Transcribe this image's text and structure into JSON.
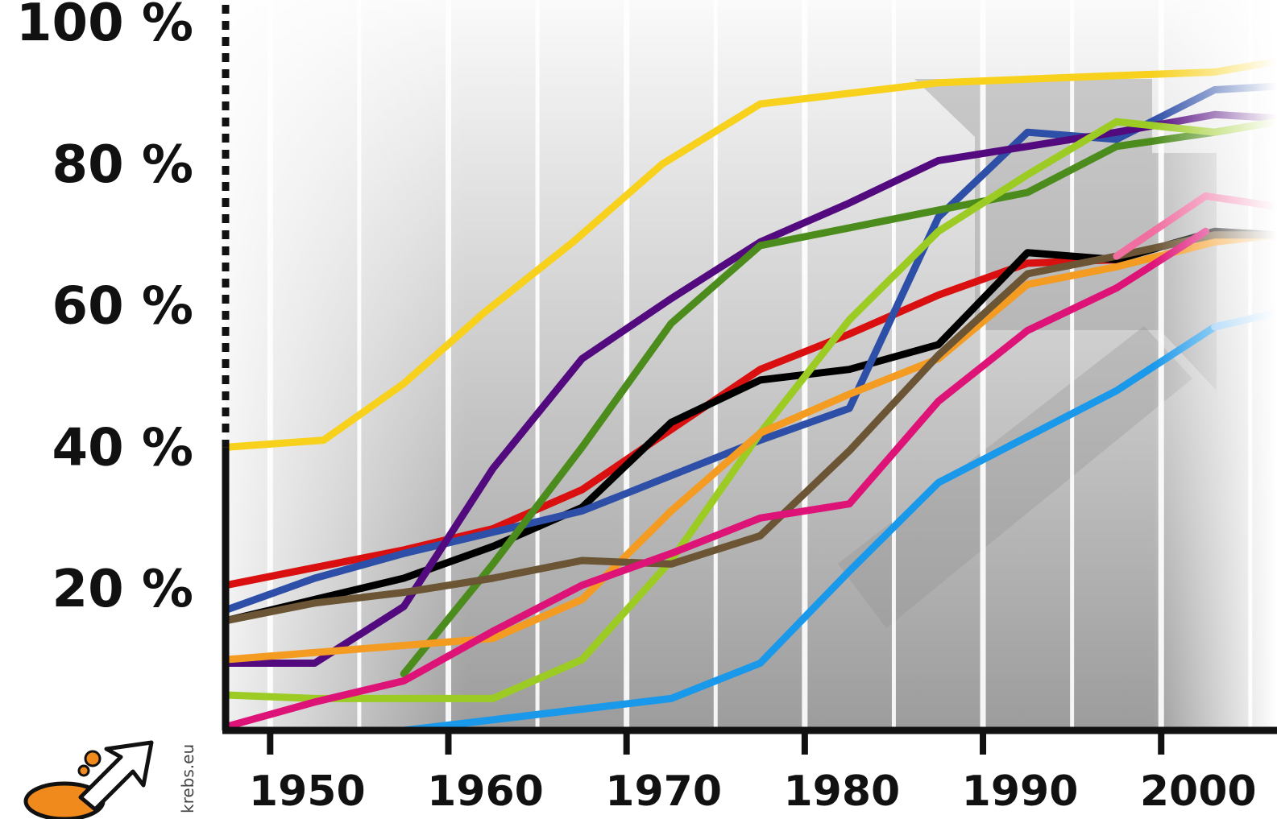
{
  "credit": "krebs.eu",
  "colors": {
    "axis": "#111111",
    "background_light": "#f5f5f5",
    "background_dark": "#9c9c9c"
  },
  "chart_data": {
    "type": "line",
    "title": "",
    "xlabel": "",
    "ylabel": "",
    "xlim": [
      1947.5,
      2006.5
    ],
    "ylim": [
      0,
      100
    ],
    "x_ticks": [
      1950,
      1960,
      1970,
      1980,
      1990,
      2000
    ],
    "x_tick_labels": [
      "1950",
      "1960",
      "1970",
      "1980",
      "1990",
      "2000"
    ],
    "y_ticks": [
      20,
      40,
      60,
      80,
      100
    ],
    "y_tick_labels": [
      "20 %",
      "40 %",
      "60 %",
      "80 %",
      "100 %"
    ],
    "grid": "vertical lines at decades and mid-decades",
    "legend": "none",
    "series": [
      {
        "color": "#f7d11c",
        "x": [
          1947.5,
          1953,
          1957.5,
          1962,
          1967,
          1972,
          1977.5,
          1982.5,
          1987.5,
          1992.5,
          1997.5,
          2003,
          2006.5
        ],
        "y": [
          40,
          41,
          49,
          59,
          69,
          80,
          88.5,
          90,
          91.5,
          92,
          92.5,
          93,
          94.5
        ]
      },
      {
        "color": "#da1010",
        "x": [
          1947.5,
          1952.5,
          1957.5,
          1962.5,
          1967.5,
          1972.5,
          1977.5,
          1982.5,
          1987.5,
          1992.5,
          1997.5
        ],
        "y": [
          20.5,
          23,
          25.5,
          28.5,
          34,
          42.5,
          51,
          56,
          61.5,
          66,
          66.5
        ]
      },
      {
        "color": "#000000",
        "x": [
          1947.5,
          1952.5,
          1957.5,
          1962.5,
          1967.5,
          1972.5,
          1977.5,
          1982.5,
          1987.5,
          1992.5,
          1997.5,
          2003,
          2006.5
        ],
        "y": [
          15.5,
          18.5,
          21.5,
          26,
          31.5,
          43.5,
          49.5,
          51,
          54.5,
          67.5,
          66.5,
          70.5,
          70
        ]
      },
      {
        "color": "#2e4fa8",
        "x": [
          1947.5,
          1952.5,
          1957.5,
          1962.5,
          1967.5,
          1972.5,
          1977.5,
          1982.5,
          1987.5,
          1992.5,
          1997.5,
          2003,
          2006.5
        ],
        "y": [
          17,
          21.5,
          25,
          28,
          31,
          36,
          41,
          45.5,
          72.5,
          84.5,
          83.5,
          90.5,
          91
        ]
      },
      {
        "color": "#520a7e",
        "x": [
          1947.5,
          1952.5,
          1957.5,
          1962.5,
          1967.5,
          1972.5,
          1977.5,
          1982.5,
          1987.5,
          1992.5,
          1997.5,
          2003,
          2006.5
        ],
        "y": [
          9.5,
          9.5,
          17.5,
          37,
          52.5,
          61,
          69,
          74.5,
          80.5,
          82.5,
          84.5,
          87,
          86.5
        ]
      },
      {
        "color": "#4c8c1c",
        "x": [
          1957.5,
          1962.5,
          1967.5,
          1972.5,
          1977.5,
          1982.5,
          1987.5,
          1992.5,
          1997.5,
          2003,
          2006.5
        ],
        "y": [
          8,
          23.5,
          40,
          57.5,
          68.5,
          71,
          73.5,
          76,
          82.5,
          84.5,
          86
        ]
      },
      {
        "color": "#9ccc24",
        "x": [
          1947.5,
          1952.5,
          1957.5,
          1962.5,
          1967.5,
          1972.5,
          1977.5,
          1982.5,
          1987.5,
          1992.5,
          1997.5,
          2003,
          2006.5
        ],
        "y": [
          5,
          4.5,
          4.5,
          4.5,
          10,
          24,
          42,
          58,
          70.5,
          78.5,
          86,
          84.5,
          86
        ]
      },
      {
        "color": "#f49b22",
        "x": [
          1947.5,
          1952.5,
          1957.5,
          1962.5,
          1967.5,
          1972.5,
          1977.5,
          1982.5,
          1987.5,
          1992.5,
          1997.5,
          2003,
          2006.5
        ],
        "y": [
          10,
          11,
          12,
          13,
          18.5,
          31,
          42,
          47.5,
          52.5,
          63,
          65.5,
          69,
          70
        ]
      },
      {
        "color": "#6b5534",
        "x": [
          1947.5,
          1952.5,
          1957.5,
          1962.5,
          1967.5,
          1972.5,
          1977.5,
          1982.5,
          1987.5,
          1992.5,
          1997.5,
          2003,
          2006.5
        ],
        "y": [
          15.5,
          18,
          19.5,
          21.5,
          24,
          23.5,
          27.5,
          39.5,
          53,
          64.5,
          67,
          70,
          70
        ]
      },
      {
        "color": "#de1378",
        "x": [
          1947.5,
          1952.5,
          1957.5,
          1962.5,
          1967.5,
          1972.5,
          1977.5,
          1982.5,
          1987.5,
          1992.5,
          1997.5,
          2002.5
        ],
        "y": [
          0.5,
          4,
          7,
          14,
          20.5,
          25,
          30,
          32,
          46.5,
          56.5,
          62.5,
          70.5
        ]
      },
      {
        "color": "#f06ea0",
        "x": [
          1997.5,
          2002.5,
          2006.5
        ],
        "y": [
          67,
          75.5,
          74
        ]
      },
      {
        "color": "#1a98ea",
        "x": [
          1957.5,
          1962.5,
          1967.5,
          1972.5,
          1977.5,
          1982.5,
          1987.5,
          1992.5,
          1997.5,
          2003
        ],
        "y": [
          0,
          1.5,
          3,
          4.5,
          9.5,
          22.5,
          35,
          41.5,
          48,
          57
        ]
      },
      {
        "color": "#7cc0f2",
        "x": [
          2003,
          2006.5
        ],
        "y": [
          57,
          59
        ]
      }
    ]
  }
}
